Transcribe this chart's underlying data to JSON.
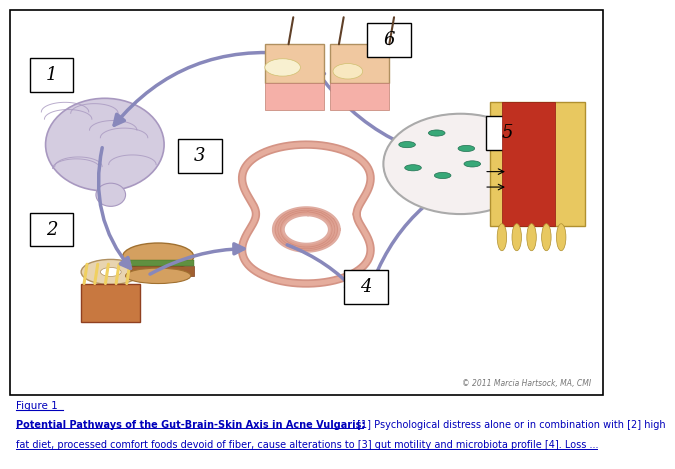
{
  "title": "Figure 1",
  "caption_bold": "Potential Pathways of the Gut-Brain-Skin Axis in Acne Vulgaris:",
  "caption_normal": " [1] Psychological distress alone or in combination with [2] high",
  "caption_line2": "fat diet, processed comfort foods devoid of fiber, cause alterations to [3] gut motility and microbiota profile [4]. Loss ...",
  "copyright": "© 2011 Marcia Hartsock, MA, CMI",
  "arrow_color": "#8888bb",
  "background_color": "#ffffff",
  "number_box_color": "#ffffff",
  "number_box_edge": "#000000",
  "title_color": "#0000bb",
  "caption_color": "#0000bb",
  "brain_color": "#d4cce0",
  "brain_edge": "#a898c0",
  "gut_color": "#d08878",
  "gut_highlight": "#e8b0a0",
  "skin_top_color": "#f0c8a0",
  "skin_mid_color": "#f5b0a8",
  "skin_deep_color": "#e89888",
  "micro_wall_color": "#e8c860",
  "micro_red_color": "#c03020",
  "micro_bact_color": "#38a878",
  "food_bun_color": "#d4a060",
  "food_donut_color": "#e8d4b0",
  "food_fry_color": "#c87840"
}
